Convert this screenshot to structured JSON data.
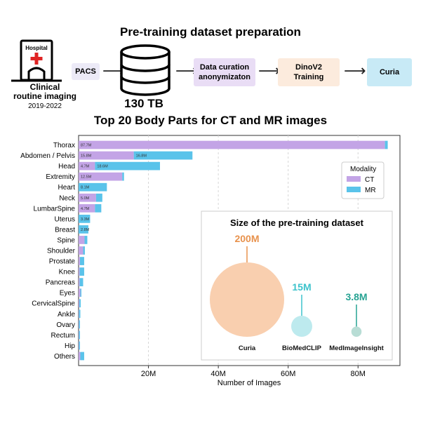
{
  "pipeline": {
    "title": "Pre-training dataset preparation",
    "hospital": {
      "sign": "Hospital",
      "caption_line1": "Clinical",
      "caption_line2": "routine imaging",
      "years": "2019-2022"
    },
    "pacs_label": "PACS",
    "storage_label": "130 TB",
    "curation_line1": "Data curation",
    "curation_line2": "anonymizaton",
    "training_line1": "DinoV2",
    "training_line2": "Training",
    "output_label": "Curia",
    "colors": {
      "pacs_bg": "#ECEAF7",
      "curation_bg": "#E9DDF5",
      "training_bg": "#FCEBDD",
      "output_bg": "#C8EAF6",
      "hospital_cross": "#E02424"
    }
  },
  "chart_data": [
    {
      "type": "bar",
      "stacked": true,
      "orientation": "horizontal",
      "title": "Top 20 Body Parts for CT and MR images",
      "xlabel": "Number of Images",
      "ylabel": "",
      "xlim": [
        0,
        92000000
      ],
      "xticks": [
        20000000,
        40000000,
        60000000,
        80000000
      ],
      "xtick_labels": [
        "20M",
        "40M",
        "60M",
        "80M"
      ],
      "grid": "vertical dashed",
      "legend": {
        "title": "Modality",
        "position": "top-right",
        "entries": [
          "CT",
          "MR"
        ]
      },
      "categories": [
        "Thorax",
        "Abdomen / Pelvis",
        "Head",
        "Extremity",
        "Heart",
        "Neck",
        "LumbarSpine",
        "Uterus",
        "Breast",
        "Spine",
        "Shoulder",
        "Prostate",
        "Knee",
        "Pancreas",
        "Eyes",
        "CervicalSpine",
        "Ankle",
        "Ovary",
        "Rectum",
        "Hip",
        "Others"
      ],
      "series": [
        {
          "name": "CT",
          "color": "#C3A4E6",
          "values": [
            87700000,
            15800000,
            4700000,
            12500000,
            0,
            5000000,
            4700000,
            0,
            0,
            1700000,
            1300000,
            400000,
            300000,
            300000,
            500000,
            200000,
            100000,
            100000,
            100000,
            100000,
            500000
          ],
          "labels": [
            "87.7M",
            "15.8M",
            "4.7M",
            "12.5M",
            "",
            "5.0M",
            "4.7M",
            "",
            "",
            "",
            "",
            "",
            "",
            "",
            "",
            "",
            "",
            "",
            "",
            "",
            ""
          ]
        },
        {
          "name": "MR",
          "color": "#5AC3EA",
          "values": [
            800000,
            16800000,
            18600000,
            500000,
            8100000,
            1800000,
            1800000,
            3300000,
            2800000,
            800000,
            500000,
            1200000,
            1300000,
            1000000,
            300000,
            400000,
            400000,
            300000,
            300000,
            300000,
            1100000
          ],
          "labels": [
            "",
            "16.8M",
            "18.6M",
            "",
            "8.1M",
            "",
            "",
            "3.3M",
            "2.8M",
            "",
            "",
            "",
            "",
            "",
            "",
            "",
            "",
            "",
            "",
            "",
            ""
          ]
        }
      ]
    },
    {
      "type": "bubble",
      "title": "Size of the pre-training dataset",
      "series": [
        {
          "name": "Curia",
          "value": 200000000,
          "label": "200M",
          "color": "#F9CFAF",
          "label_color": "#E8924D"
        },
        {
          "name": "BioMedCLIP",
          "value": 15000000,
          "label": "15M",
          "color": "#BDEAEE",
          "label_color": "#3DC3CC"
        },
        {
          "name": "MedImageInsight",
          "value": 3800000,
          "label": "3.8M",
          "color": "#B8DDD5",
          "label_color": "#27A393"
        }
      ]
    }
  ]
}
